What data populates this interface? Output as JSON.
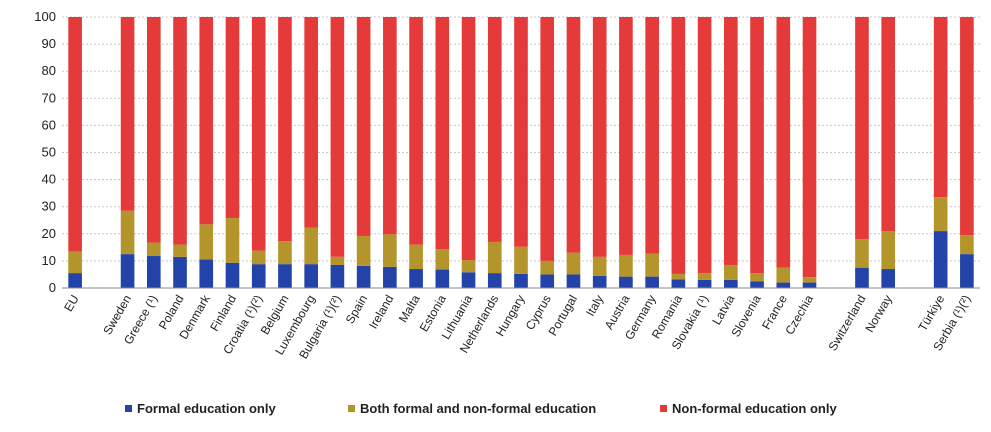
{
  "chart_data": {
    "type": "bar",
    "stacked": true,
    "categories": [
      "EU",
      "Sweden",
      "Greece (¹)",
      "Poland",
      "Denmark",
      "Finland",
      "Croatia (¹)(²)",
      "Belgium",
      "Luxembourg",
      "Bulgaria (¹)(²)",
      "Spain",
      "Ireland",
      "Malta",
      "Estonia",
      "Lithuania",
      "Netherlands",
      "Hungary",
      "Cyprus",
      "Portugal",
      "Italy",
      "Austria",
      "Germany",
      "Romania",
      "Slovakia (¹)",
      "Latvia",
      "Slovenia",
      "France",
      "Czechia",
      "Switzerland",
      "Norway",
      "Türkiye",
      "Serbia (¹)(²)"
    ],
    "groups": [
      1,
      27,
      2,
      2
    ],
    "series": [
      {
        "name": "Formal education only",
        "color": "#2343a8",
        "values": [
          5.5,
          12.5,
          11.8,
          11.5,
          10.5,
          9.3,
          8.8,
          8.8,
          8.8,
          8.5,
          8.2,
          7.8,
          7.0,
          6.8,
          5.8,
          5.5,
          5.2,
          5.0,
          5.0,
          4.5,
          4.2,
          4.2,
          3.2,
          3.0,
          3.0,
          2.5,
          2.0,
          2.0,
          7.5,
          7.0,
          21.0,
          12.5
        ]
      },
      {
        "name": "Both formal and non-formal education",
        "color": "#b3952c",
        "values": [
          8.0,
          16.0,
          5.0,
          4.5,
          13.0,
          16.5,
          5.0,
          8.5,
          13.5,
          3.0,
          11.0,
          12.0,
          9.0,
          7.5,
          4.5,
          11.5,
          10.0,
          5.0,
          8.0,
          7.0,
          8.0,
          8.5,
          2.0,
          2.5,
          5.5,
          3.0,
          5.5,
          2.0,
          10.5,
          14.0,
          12.5,
          7.0
        ]
      },
      {
        "name": "Non-formal education only",
        "color": "#e53a3a",
        "values": [
          86.5,
          71.5,
          83.2,
          84.0,
          76.5,
          74.2,
          86.2,
          82.7,
          77.7,
          88.5,
          80.8,
          80.2,
          84.0,
          85.7,
          89.7,
          83.0,
          84.8,
          90.0,
          87.0,
          88.5,
          87.8,
          87.3,
          94.8,
          94.5,
          91.5,
          94.5,
          92.5,
          96.0,
          82.0,
          79.0,
          66.5,
          80.5
        ]
      }
    ],
    "ylim": [
      0,
      100
    ],
    "yticks": [
      0,
      10,
      20,
      30,
      40,
      50,
      60,
      70,
      80,
      90,
      100
    ],
    "grid": true,
    "legend_position": "bottom"
  }
}
